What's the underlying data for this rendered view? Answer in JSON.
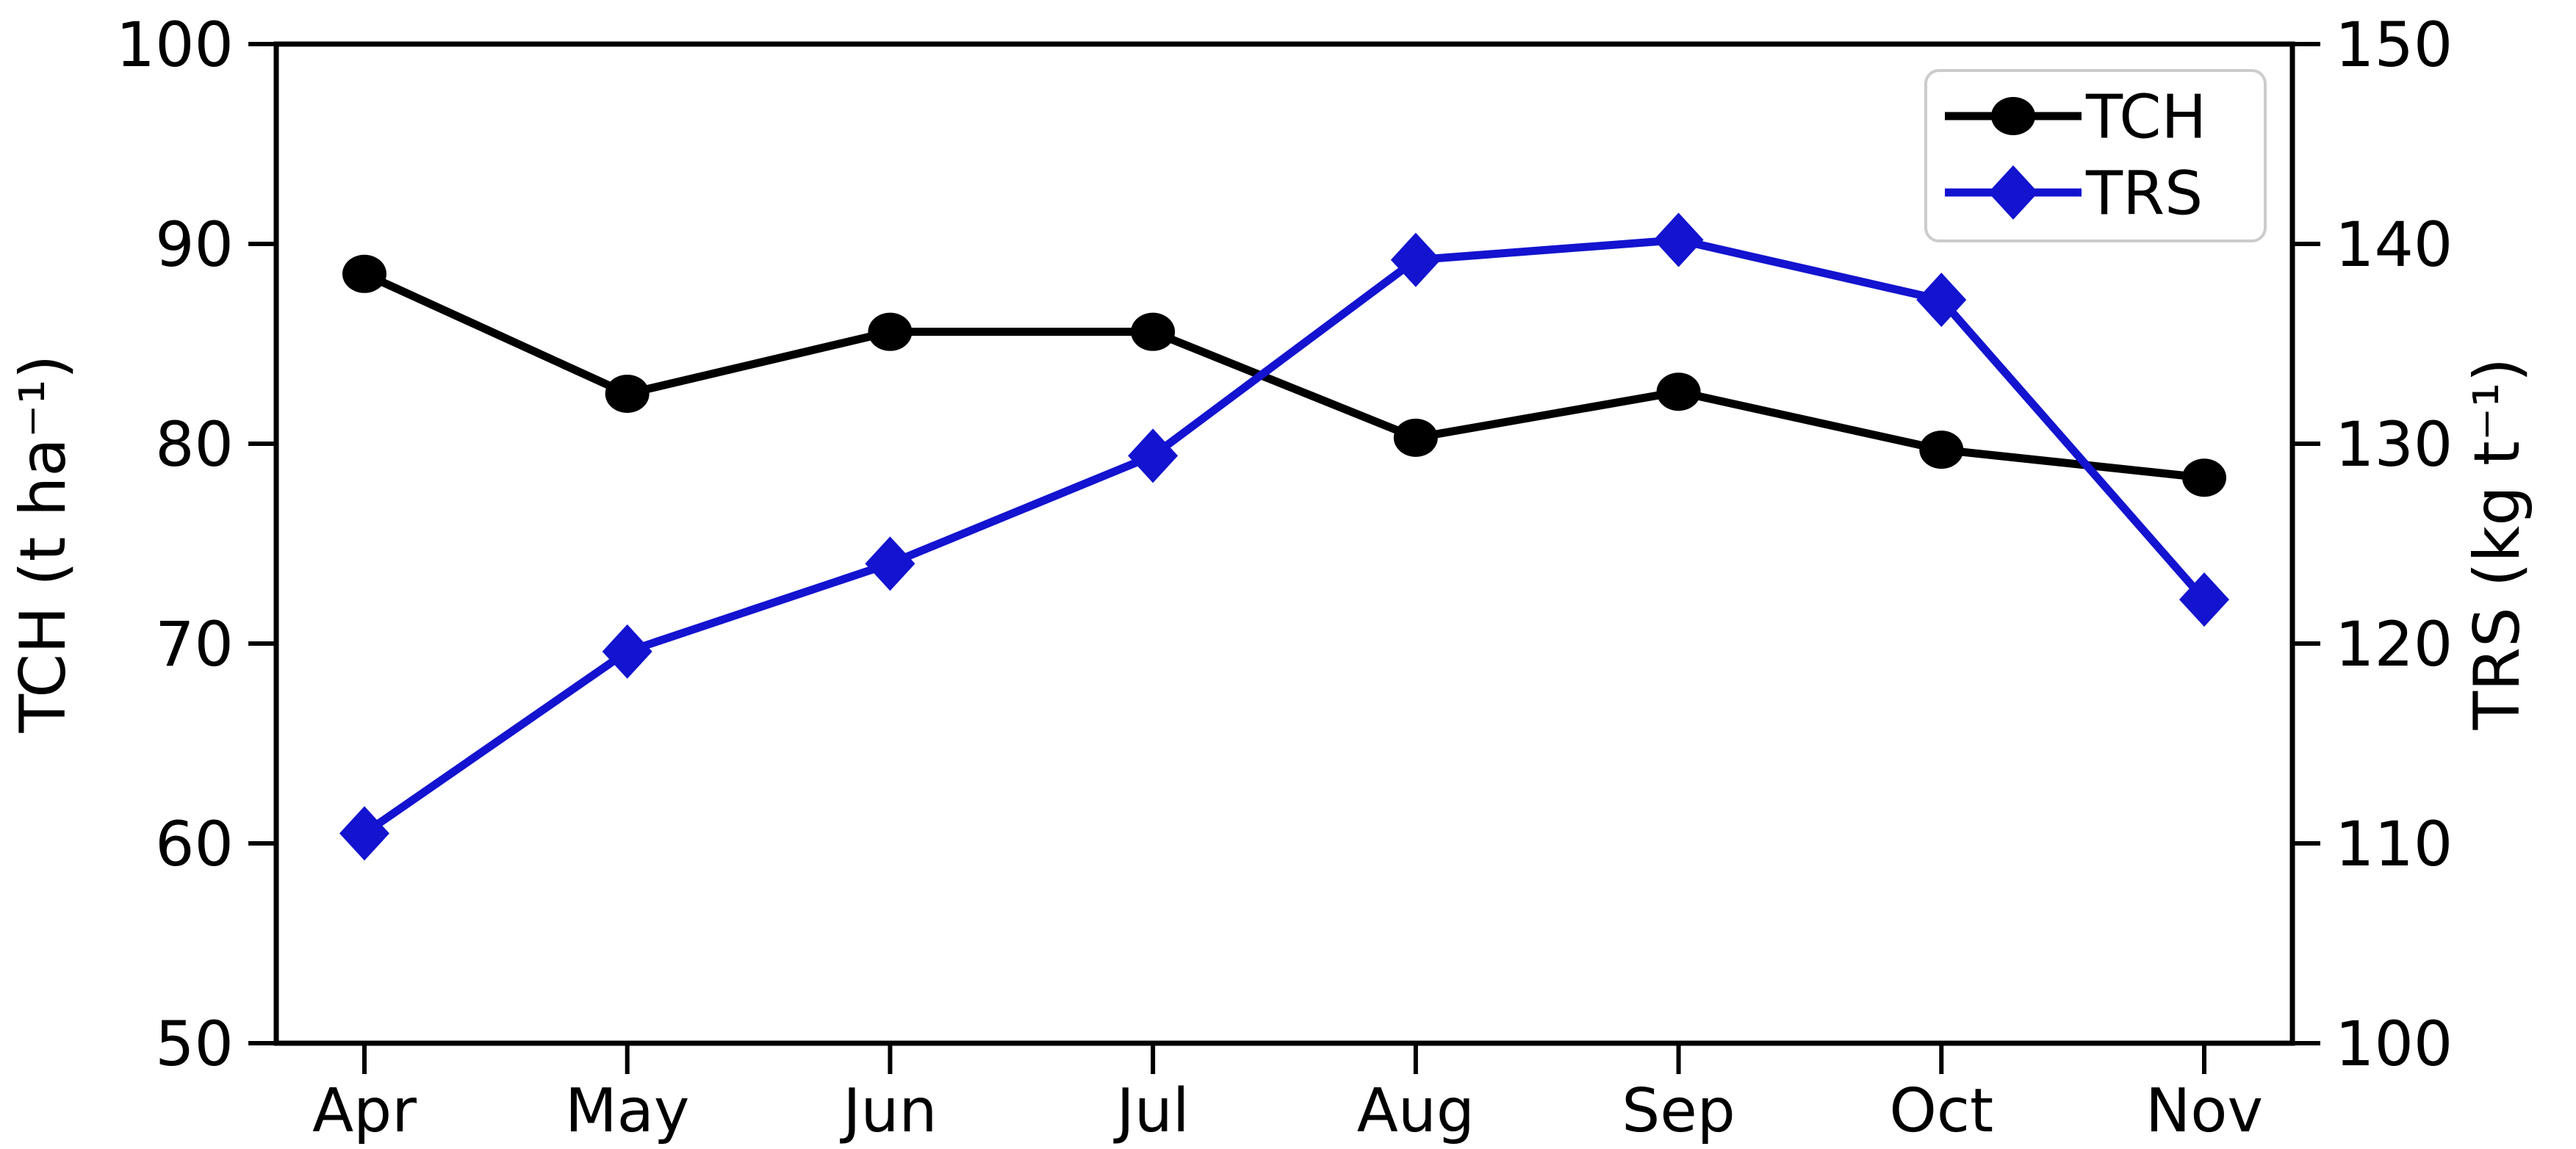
{
  "chart_data": {
    "type": "line",
    "categories": [
      "Apr",
      "May",
      "Jun",
      "Jul",
      "Aug",
      "Sep",
      "Oct",
      "Nov"
    ],
    "series": [
      {
        "name": "TCH",
        "axis": "left",
        "marker": "circle",
        "color": "#000000",
        "values": [
          88.5,
          82.5,
          85.6,
          85.6,
          80.3,
          82.6,
          79.7,
          78.3
        ]
      },
      {
        "name": "TRS",
        "axis": "right",
        "marker": "diamond",
        "color": "#1313d0",
        "values": [
          110.5,
          119.6,
          124.0,
          129.4,
          139.2,
          140.2,
          137.2,
          122.2
        ]
      }
    ],
    "left_axis": {
      "label": "TCH (t ha⁻¹)",
      "min": 50,
      "max": 100,
      "ticks": [
        100,
        90,
        80,
        70,
        60,
        50
      ]
    },
    "right_axis": {
      "label": "TRS (kg t⁻¹)",
      "min": 100,
      "max": 150,
      "ticks": [
        150,
        140,
        130,
        120,
        110,
        100
      ]
    },
    "legend": {
      "position": "top-right",
      "entries": [
        "TCH",
        "TRS"
      ]
    },
    "grid": false,
    "title": "",
    "xlabel": ""
  },
  "colors": {
    "axis": "#000000",
    "background": "#ffffff",
    "legend_border": "#cccccc",
    "legend_fill": "#ffffff"
  }
}
